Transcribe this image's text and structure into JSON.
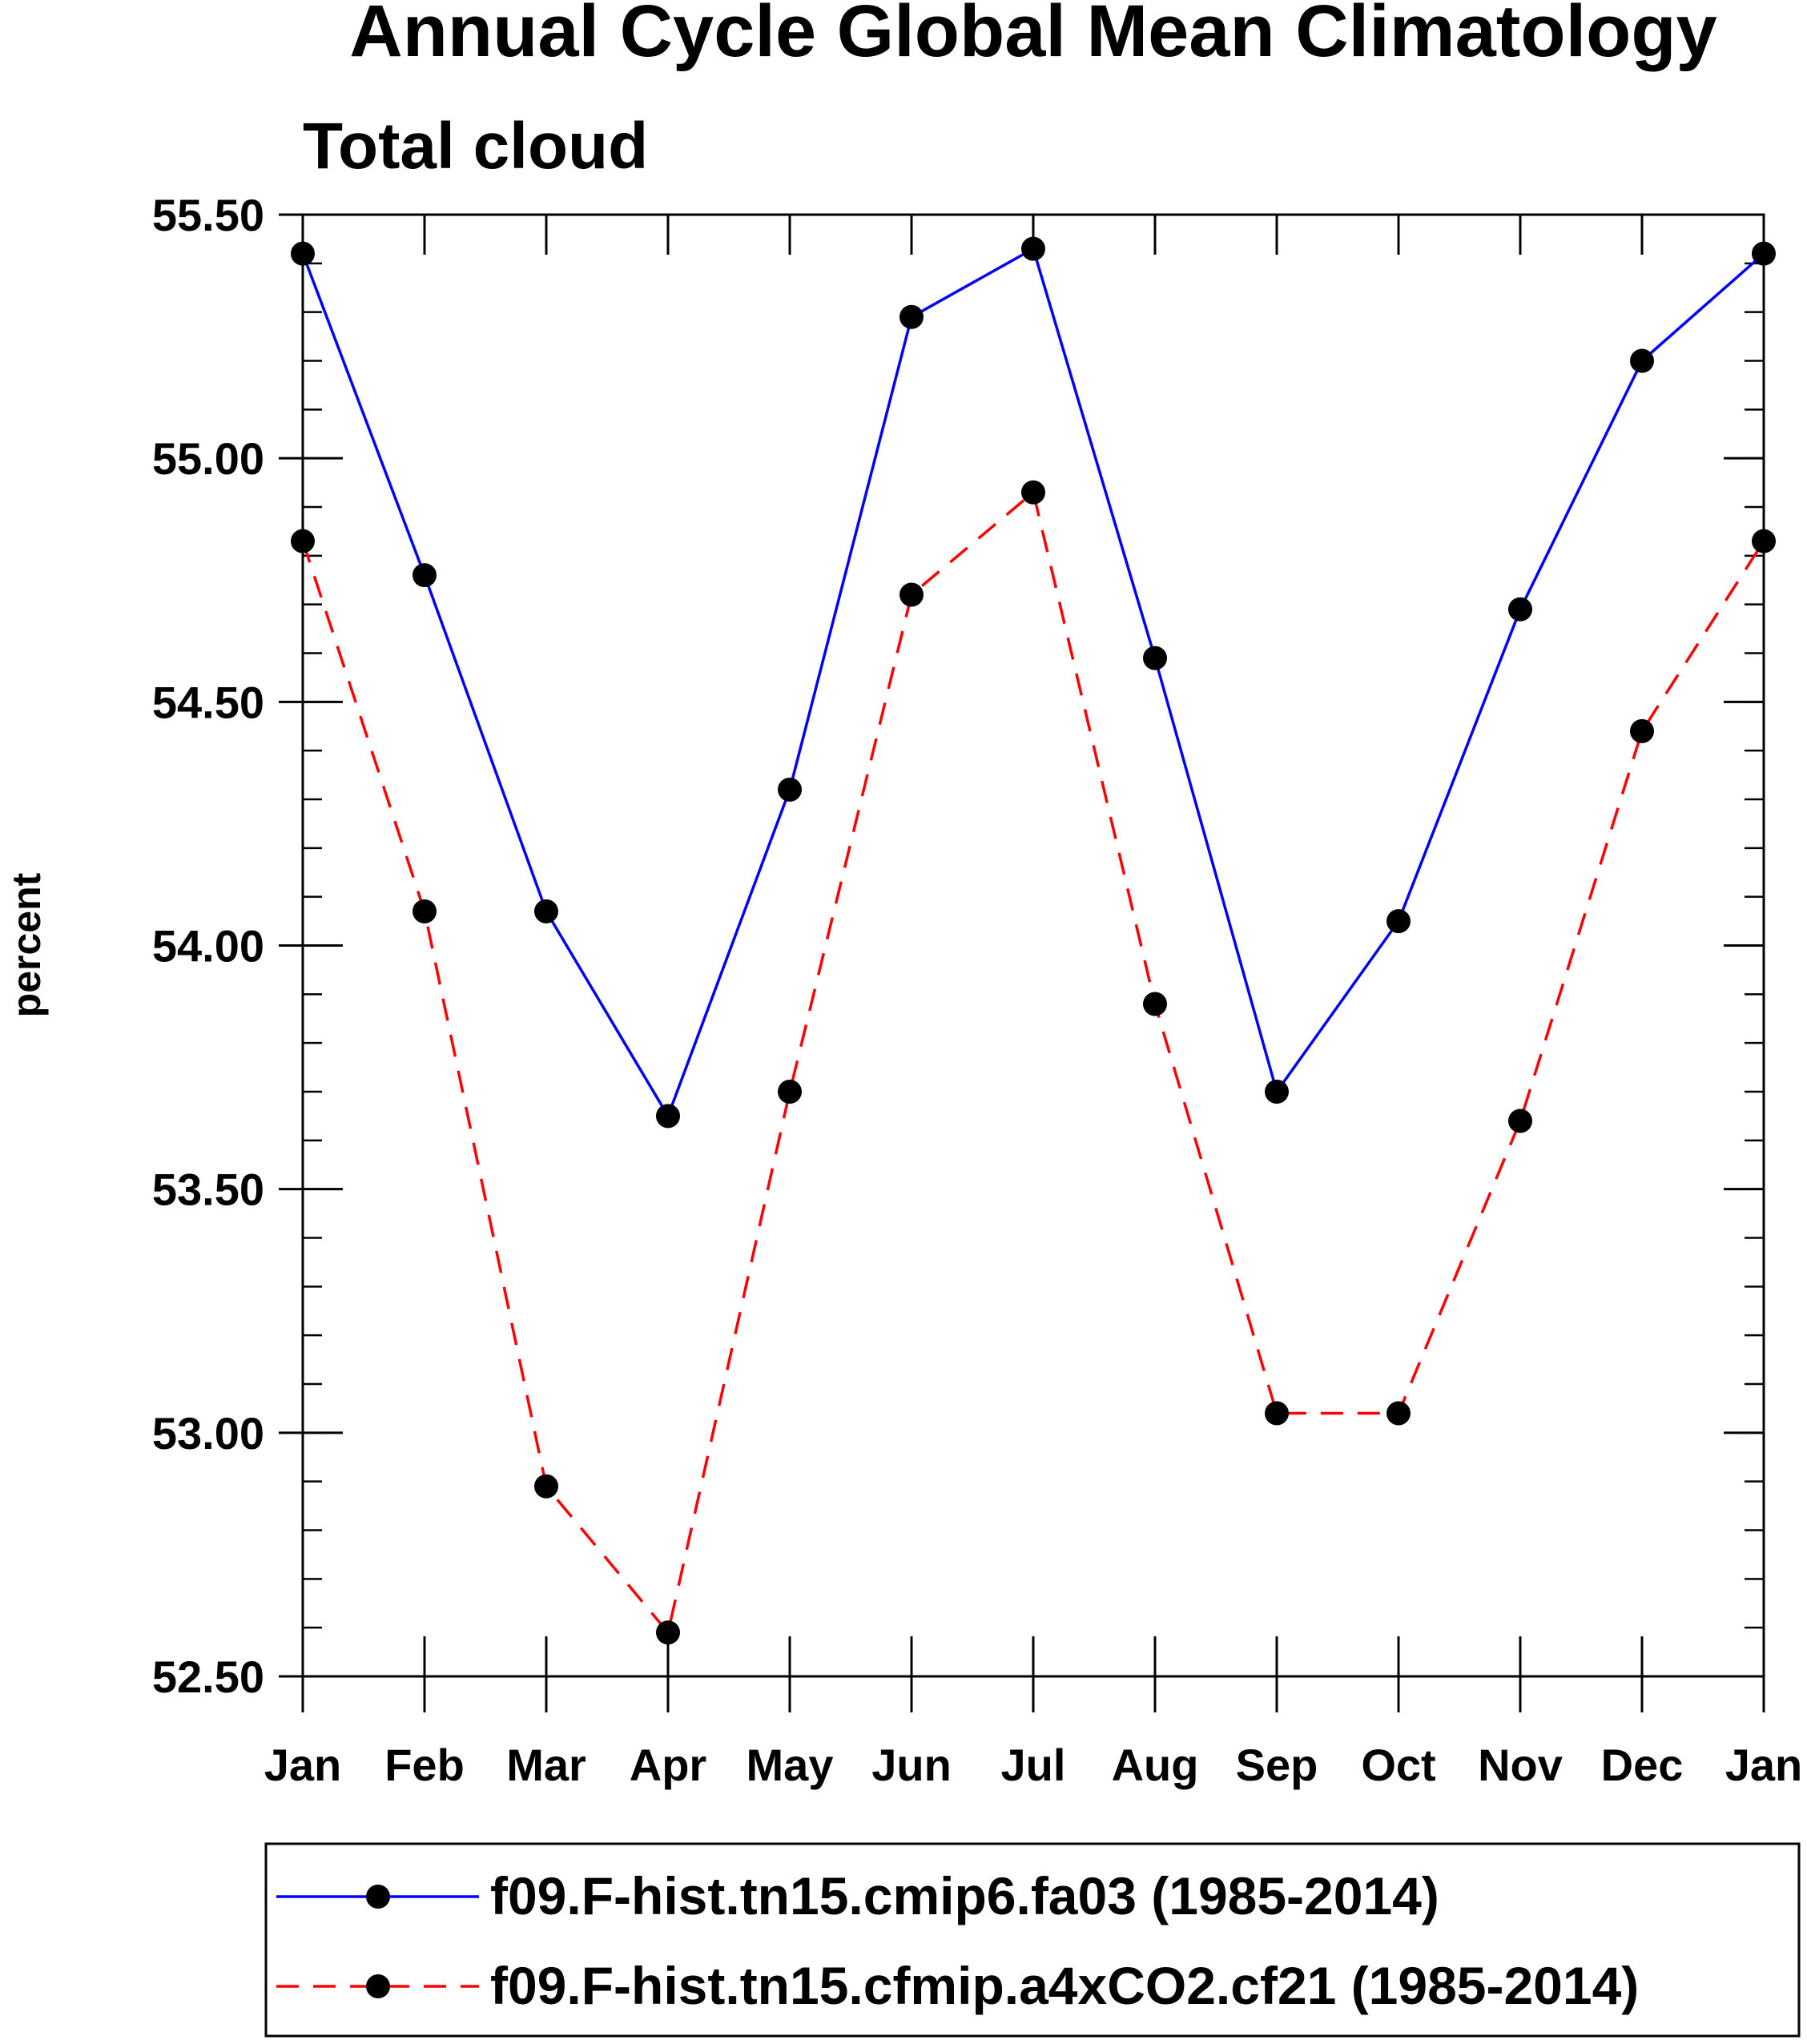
{
  "chart_data": {
    "type": "line",
    "title": "Annual Cycle Global Mean Climatology",
    "subtitle": "Total cloud",
    "xlabel": "",
    "ylabel": "percent",
    "categories": [
      "Jan",
      "Feb",
      "Mar",
      "Apr",
      "May",
      "Jun",
      "Jul",
      "Aug",
      "Sep",
      "Oct",
      "Nov",
      "Dec",
      "Jan"
    ],
    "ylim": [
      52.5,
      55.5
    ],
    "yticks": [
      52.5,
      53.0,
      53.5,
      54.0,
      54.5,
      55.0,
      55.5
    ],
    "ytick_labels": [
      "52.50",
      "53.00",
      "53.50",
      "54.00",
      "54.50",
      "55.00",
      "55.50"
    ],
    "minor_y_step": 0.1,
    "grid": false,
    "legend_position": "bottom",
    "series": [
      {
        "name": "f09.F-hist.tn15.cmip6.fa03 (1985-2014)",
        "color": "#0000ff",
        "line_style": "solid",
        "marker": "filled-circle",
        "values": [
          55.42,
          54.76,
          54.07,
          53.65,
          54.32,
          55.29,
          55.43,
          54.59,
          53.7,
          54.05,
          54.69,
          55.2,
          55.42
        ]
      },
      {
        "name": "f09.F-hist.tn15.cfmip.a4xCO2.cf21 (1985-2014)",
        "color": "#ff0000",
        "line_style": "dashed",
        "marker": "filled-circle",
        "values": [
          54.83,
          54.07,
          52.89,
          52.59,
          53.7,
          54.72,
          54.93,
          53.88,
          53.04,
          53.04,
          53.64,
          54.44,
          54.83
        ]
      }
    ]
  }
}
